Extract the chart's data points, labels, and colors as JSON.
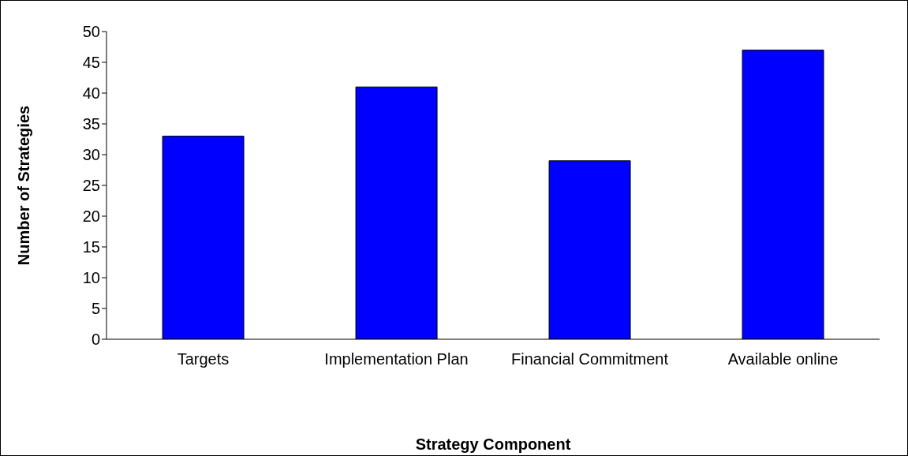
{
  "chart_data": {
    "type": "bar",
    "xlabel": "Strategy Component",
    "ylabel": "Number of Strategies",
    "categories": [
      "Targets",
      "Implementation Plan",
      "Financial Commitment",
      "Available online"
    ],
    "values": [
      33,
      41,
      29,
      47
    ],
    "color": "#0000ff",
    "ylim": [
      0,
      50
    ],
    "yticks": [
      0,
      5,
      10,
      15,
      20,
      25,
      30,
      35,
      40,
      45,
      50
    ],
    "grid": false,
    "legend": false
  }
}
